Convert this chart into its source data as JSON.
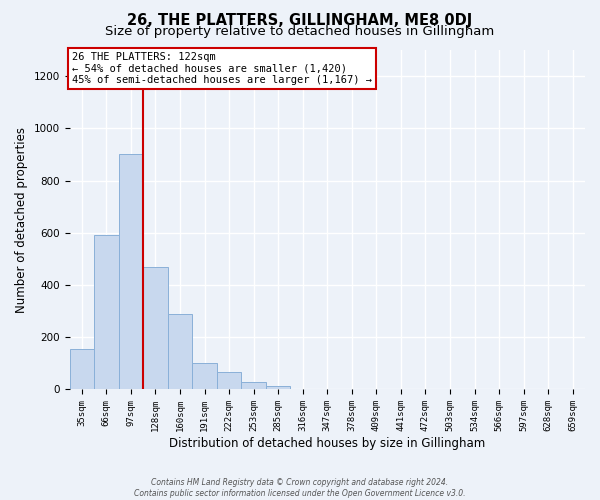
{
  "title": "26, THE PLATTERS, GILLINGHAM, ME8 0DJ",
  "subtitle": "Size of property relative to detached houses in Gillingham",
  "xlabel": "Distribution of detached houses by size in Gillingham",
  "ylabel": "Number of detached properties",
  "bar_labels": [
    "35sqm",
    "66sqm",
    "97sqm",
    "128sqm",
    "160sqm",
    "191sqm",
    "222sqm",
    "253sqm",
    "285sqm",
    "316sqm",
    "347sqm",
    "378sqm",
    "409sqm",
    "441sqm",
    "472sqm",
    "503sqm",
    "534sqm",
    "566sqm",
    "597sqm",
    "628sqm",
    "659sqm"
  ],
  "bar_values": [
    155,
    590,
    900,
    470,
    290,
    100,
    65,
    28,
    15,
    0,
    0,
    0,
    0,
    0,
    0,
    0,
    0,
    0,
    0,
    0,
    0
  ],
  "bar_color": "#c8d8ee",
  "bar_edgecolor": "#8ab0d8",
  "vline_index": 3,
  "vline_color": "#cc0000",
  "ylim": [
    0,
    1300
  ],
  "yticks": [
    0,
    200,
    400,
    600,
    800,
    1000,
    1200
  ],
  "annotation_title": "26 THE PLATTERS: 122sqm",
  "annotation_line1": "← 54% of detached houses are smaller (1,420)",
  "annotation_line2": "45% of semi-detached houses are larger (1,167) →",
  "annotation_box_color": "#ffffff",
  "annotation_box_edgecolor": "#cc0000",
  "footer_line1": "Contains HM Land Registry data © Crown copyright and database right 2024.",
  "footer_line2": "Contains public sector information licensed under the Open Government Licence v3.0.",
  "background_color": "#edf2f9",
  "grid_color": "#ffffff",
  "title_fontsize": 10.5,
  "subtitle_fontsize": 9.5,
  "xlabel_fontsize": 8.5,
  "ylabel_fontsize": 8.5
}
